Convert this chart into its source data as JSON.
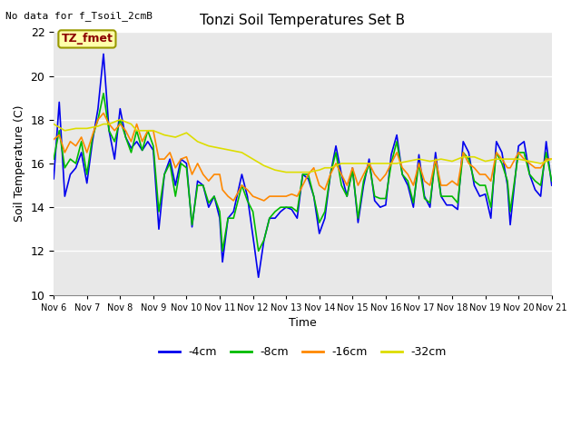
{
  "title": "Tonzi Soil Temperatures Set B",
  "xlabel": "Time",
  "ylabel": "Soil Temperature (C)",
  "top_left_text": "No data for f_Tsoil_2cmB",
  "legend_label_text": "TZ_fmet",
  "ylim": [
    10,
    22
  ],
  "xlim": [
    0,
    360
  ],
  "xtick_labels": [
    "Nov 6",
    "Nov 7",
    "Nov 8",
    "Nov 9",
    "Nov 10",
    "Nov 11",
    "Nov 12",
    "Nov 13",
    "Nov 14",
    "Nov 15",
    "Nov 16",
    "Nov 17",
    "Nov 18",
    "Nov 19",
    "Nov 20",
    "Nov 21"
  ],
  "colors": {
    "4cm": "#0000ee",
    "8cm": "#00bb00",
    "16cm": "#ff8800",
    "32cm": "#dddd00"
  },
  "plot_bg": "#e8e8e8",
  "fig_bg": "#ffffff",
  "grid_color": "#ffffff"
}
